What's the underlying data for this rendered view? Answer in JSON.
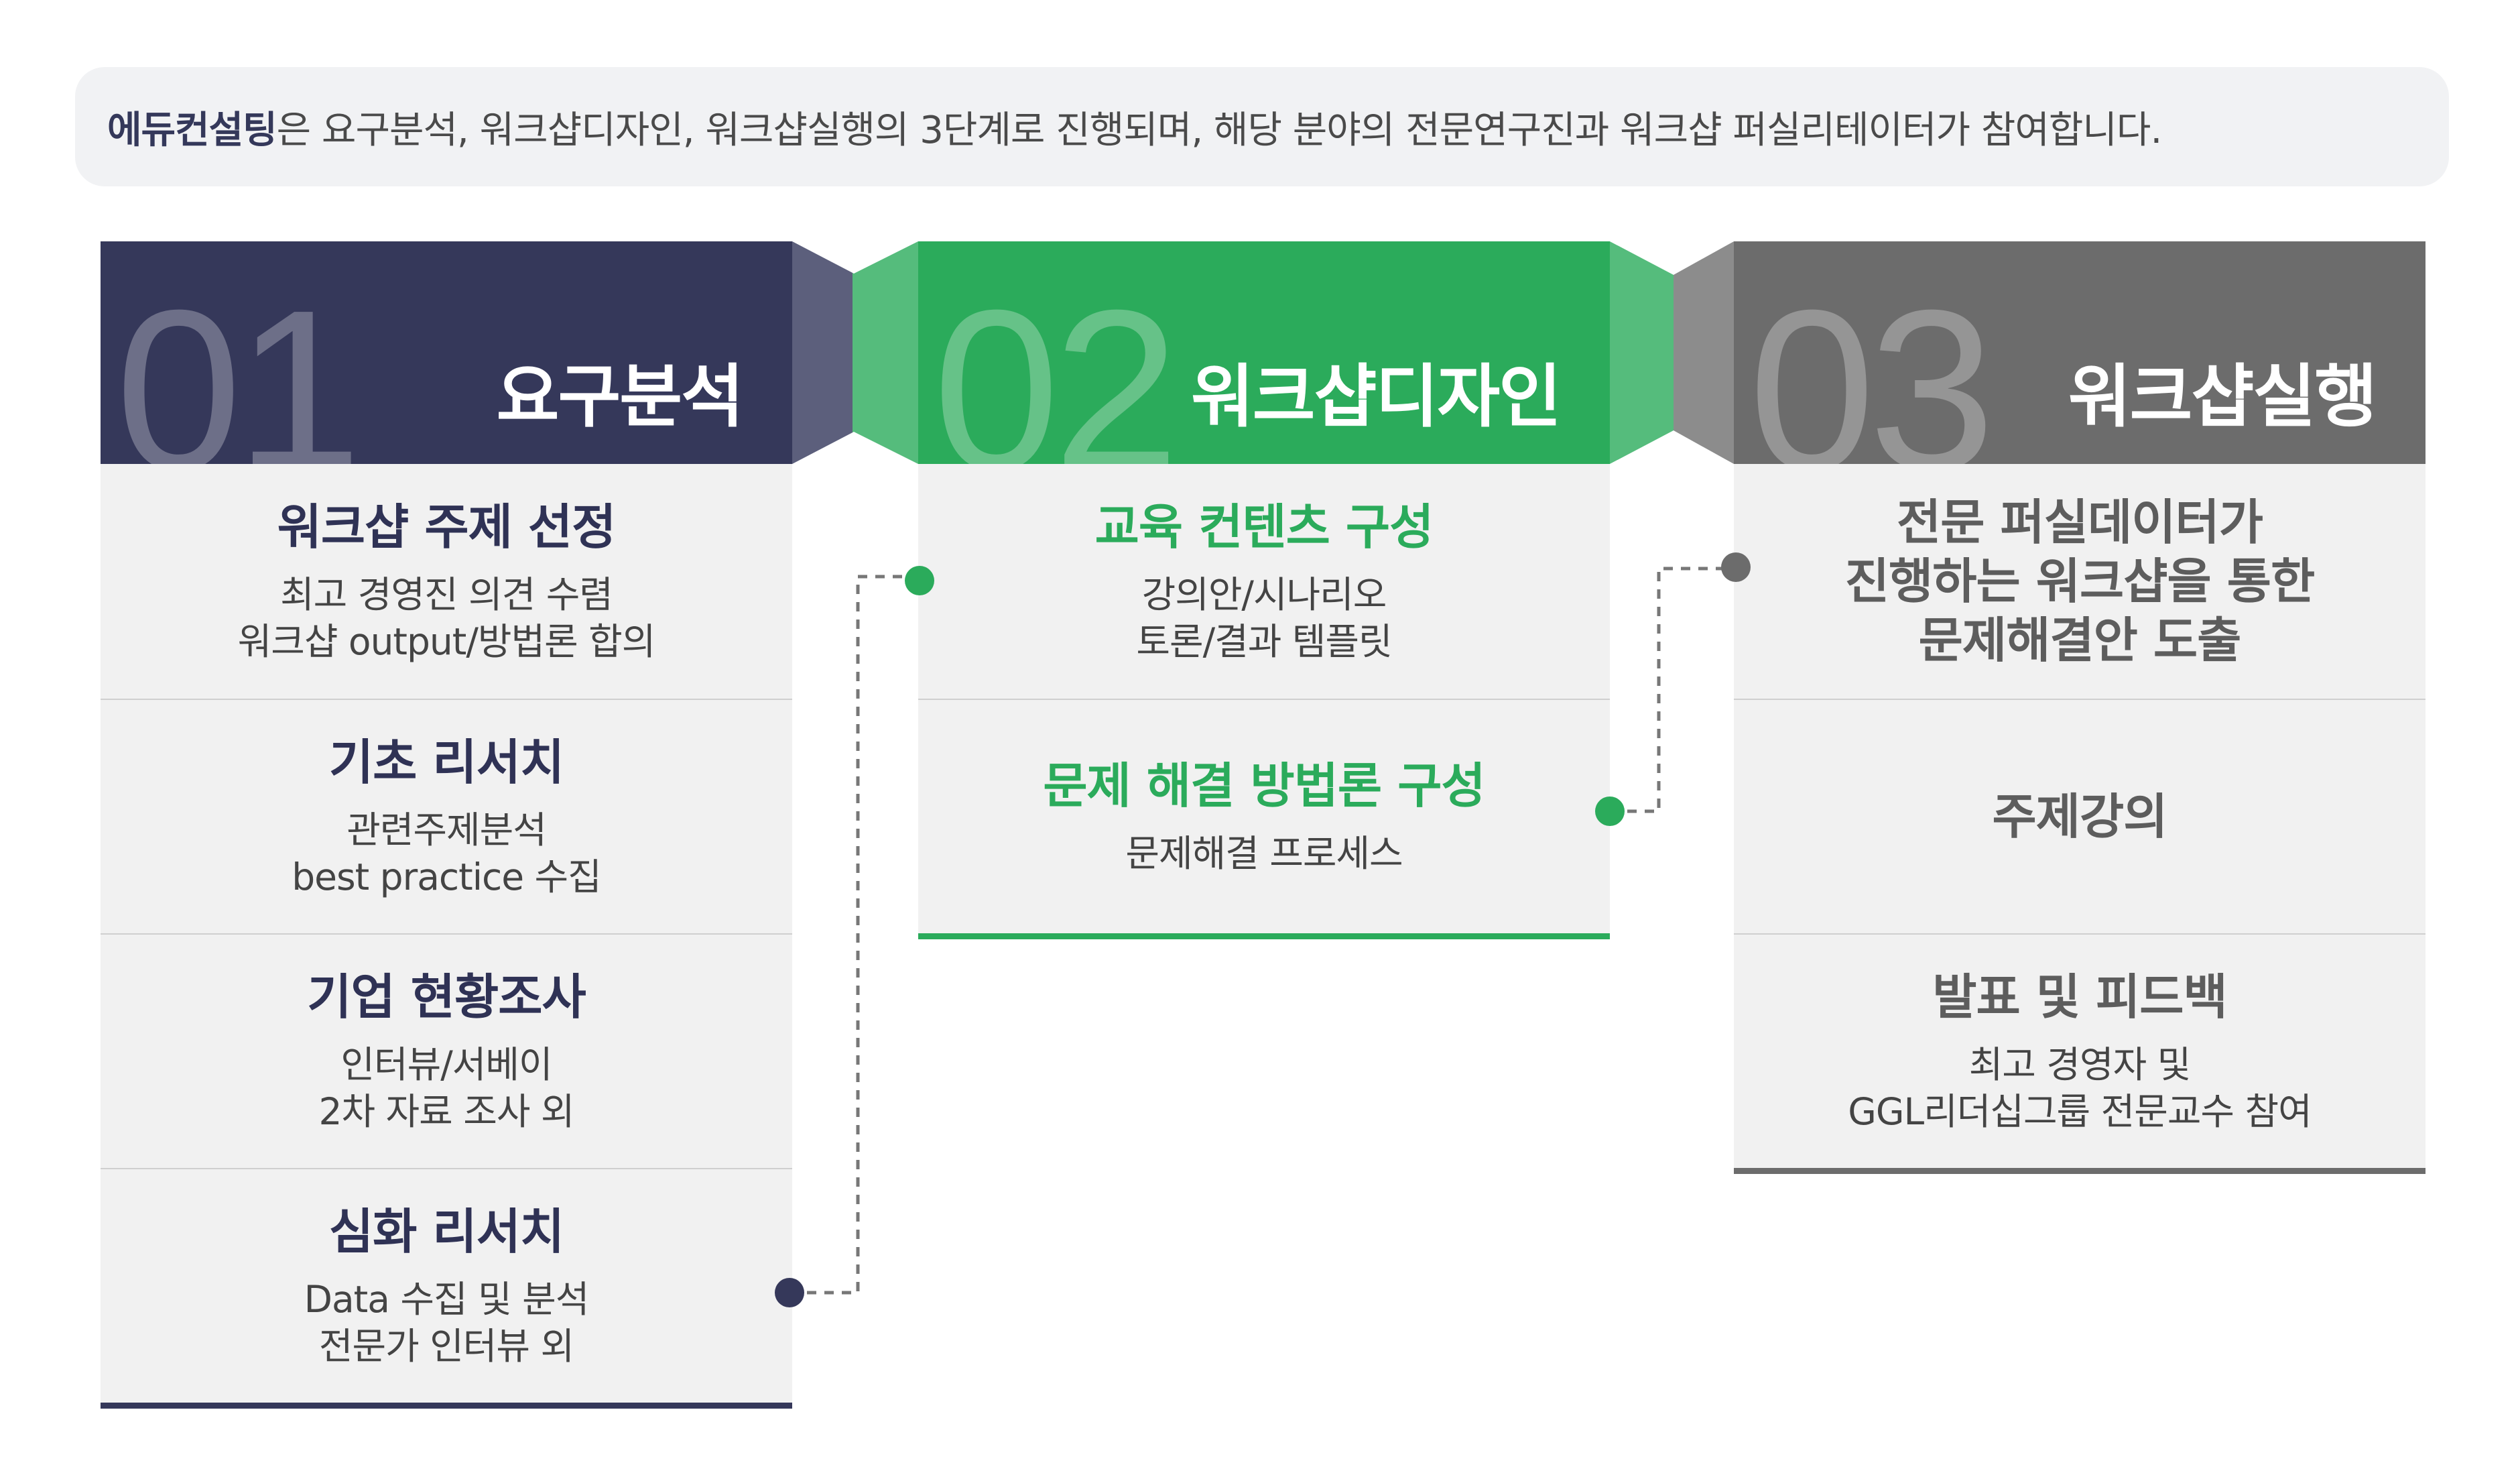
{
  "intro": {
    "brand": "에듀컨설팅",
    "text": "은 요구분석, 워크샵디자인, 워크샵실행의 3단계로 진행되며, 해당 분야의 전문연구진과 워크샵 퍼실리테이터가 참여합니다."
  },
  "colors": {
    "navy": "#35385a",
    "green": "#2bab5b",
    "gray": "#6c6c6c",
    "row_bg": "#f1f1f1"
  },
  "stages": [
    {
      "number": "01",
      "title": "요구분석",
      "items": [
        {
          "title": "워크샵 주제 선정",
          "sub": "최고 경영진 의견 수렴\n워크샵 output/방법론 합의"
        },
        {
          "title": "기초 리서치",
          "sub": "관련주제분석\nbest practice 수집"
        },
        {
          "title": "기업 현황조사",
          "sub": "인터뷰/서베이\n2차 자료 조사 외"
        },
        {
          "title": "심화 리서치",
          "sub": "Data 수집 및 분석\n전문가 인터뷰 외"
        }
      ]
    },
    {
      "number": "02",
      "title": "워크샵디자인",
      "items": [
        {
          "title": "교육 컨텐츠 구성",
          "sub": "강의안/시나리오\n토론/결과 템플릿"
        },
        {
          "title": "문제 해결 방법론 구성",
          "sub": "문제해결 프로세스"
        }
      ]
    },
    {
      "number": "03",
      "title": "워크샵실행",
      "items": [
        {
          "title": "전문 퍼실데이터가\n진행하는 워크샵을 통한\n문제해결안 도출",
          "sub": ""
        },
        {
          "title": "주제강의",
          "sub": ""
        },
        {
          "title": "발표 및 피드백",
          "sub": "최고 경영자 및\nGGL리더십그룹 전문교수 참여"
        }
      ]
    }
  ]
}
